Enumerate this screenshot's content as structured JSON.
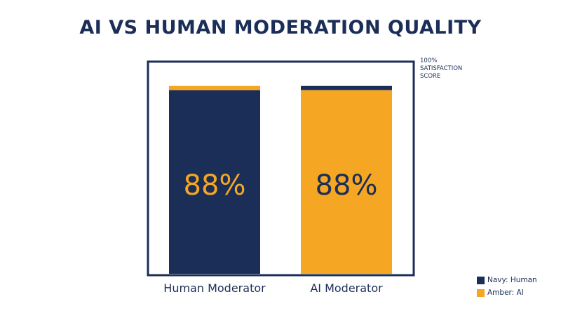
{
  "title": "AI VS HUMAN MODERATION QUALITY",
  "top_note": {
    "line1": "100%",
    "line2": "SATISFACTION",
    "line3": "SCORE"
  },
  "legend": {
    "items": [
      {
        "label": "Navy: Human",
        "color": "#1b2e57"
      },
      {
        "label": "Amber: AI",
        "color": "#f5a623"
      }
    ]
  },
  "colors": {
    "navy": "#1b2e57",
    "amber": "#f5a623",
    "frame": "#1b2e57"
  },
  "chart_data": {
    "type": "bar",
    "categories": [
      "Human Moderator",
      "AI Moderator"
    ],
    "values": [
      88,
      88
    ],
    "value_labels": [
      "88%",
      "88%"
    ],
    "bar_colors": [
      "#1b2e57",
      "#f5a623"
    ],
    "cap_colors": [
      "#f5a623",
      "#1b2e57"
    ],
    "label_colors": [
      "#f5a623",
      "#1b2e57"
    ],
    "ylim": [
      0,
      100
    ]
  }
}
